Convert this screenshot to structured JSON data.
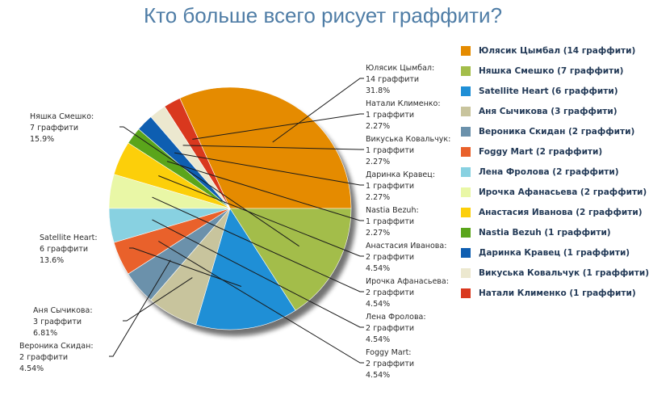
{
  "chart_data": {
    "type": "pie",
    "title": "Кто больше всего рисует граффити?",
    "slices": [
      {
        "name": "Юлясик Цымбал",
        "value": 14,
        "label": "14 граффити",
        "percent": "31.8%",
        "legend": "Юлясик Цымбал (14 граффити)",
        "color": "#e58b00"
      },
      {
        "name": "Натали Клименко",
        "value": 1,
        "label": "1 граффити",
        "percent": "2.27%",
        "legend": "Натали Клименко (1 граффити)",
        "color": "#d9381e"
      },
      {
        "name": "Викуська Ковальчук",
        "value": 1,
        "label": "1 граффити",
        "percent": "2.27%",
        "legend": "Викуська Ковальчук (1 граффити)",
        "color": "#ece8cf"
      },
      {
        "name": "Даринка Кравец",
        "value": 1,
        "label": "1 граффити",
        "percent": "2.27%",
        "legend": "Даринка Кравец (1 граффити)",
        "color": "#0e5eb1"
      },
      {
        "name": "Nastia Bezuh",
        "value": 1,
        "label": "1 граффити",
        "percent": "2.27%",
        "legend": "Nastia Bezuh (1 граффити)",
        "color": "#5aa51b"
      },
      {
        "name": "Анастасия Иванова",
        "value": 2,
        "label": "2 граффити",
        "percent": "4.54%",
        "legend": "Анастасия Иванова (2 граффити)",
        "color": "#fccf0a"
      },
      {
        "name": "Ирочка Афанасьева",
        "value": 2,
        "label": "2 граффити",
        "percent": "4.54%",
        "legend": "Ирочка Афанасьева (2 граффити)",
        "color": "#e9f7a6"
      },
      {
        "name": "Лена Фролова",
        "value": 2,
        "label": "2 граффити",
        "percent": "4.54%",
        "legend": "Лена Фролова (2 граффити)",
        "color": "#88d1e1"
      },
      {
        "name": "Foggy Mart",
        "value": 2,
        "label": "2 граффити",
        "percent": "4.54%",
        "legend": "Foggy Mart (2 граффити)",
        "color": "#e9612b"
      },
      {
        "name": "Вероника Скидан",
        "value": 2,
        "label": "2 граффити",
        "percent": "4.54%",
        "legend": "Вероника Скидан (2 граффити)",
        "color": "#6b91ab"
      },
      {
        "name": "Аня Сычикова",
        "value": 3,
        "label": "3 граффити",
        "percent": "6.81%",
        "legend": "Аня Сычикова (3 граффити)",
        "color": "#c8c49d"
      },
      {
        "name": "Satellite Heart",
        "value": 6,
        "label": "6 граффити",
        "percent": "13.6%",
        "legend": "Satellite Heart (6 граффити)",
        "color": "#1f8fd6"
      },
      {
        "name": "Няшка Смешко",
        "value": 7,
        "label": "7 граффити",
        "percent": "15.9%",
        "legend": "Няшка Смешко (7 граффити)",
        "color": "#a3bd4a"
      }
    ],
    "legend_order": [
      0,
      12,
      11,
      10,
      9,
      8,
      7,
      6,
      5,
      4,
      3,
      2,
      1
    ],
    "legend_position": "right"
  }
}
